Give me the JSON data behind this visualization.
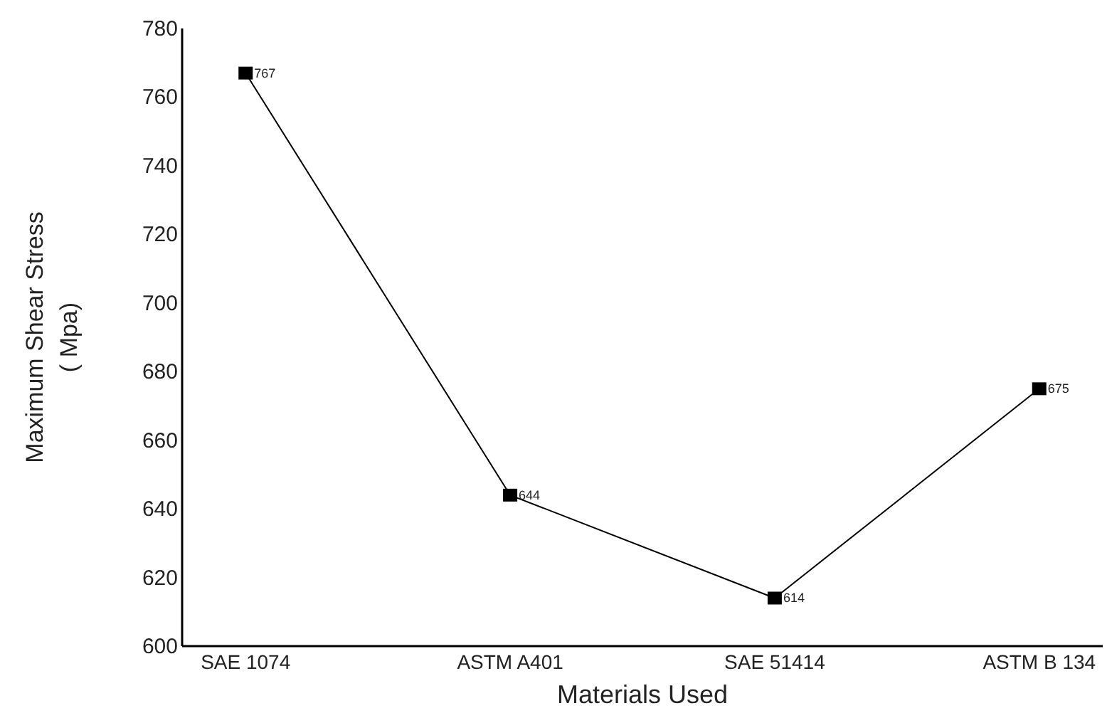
{
  "chart_data": {
    "type": "line",
    "xlabel": "Materials Used",
    "ylabel": "Maximum Shear Stress\n( Mpa)",
    "categories": [
      "SAE 1074",
      "ASTM A401",
      "SAE 51414",
      "ASTM B 134"
    ],
    "series": [
      {
        "color": "#000000",
        "values": [
          767,
          644,
          614,
          675
        ]
      }
    ],
    "ylim": [
      600,
      780
    ],
    "yticks": [
      600,
      620,
      640,
      660,
      680,
      700,
      720,
      740,
      760,
      780
    ],
    "marker": "square",
    "line_style": "solid",
    "data_labels": true
  }
}
